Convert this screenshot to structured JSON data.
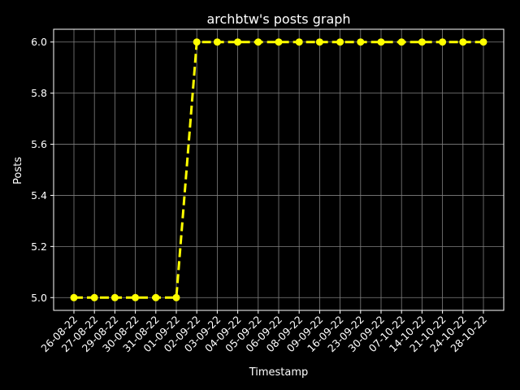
{
  "chart_data": {
    "type": "line",
    "title": "archbtw's posts graph",
    "xlabel": "Timestamp",
    "ylabel": "Posts",
    "categories": [
      "26-08-22",
      "27-08-22",
      "29-08-22",
      "30-08-22",
      "31-08-22",
      "01-09-22",
      "02-09-22",
      "03-09-22",
      "04-09-22",
      "05-09-22",
      "06-09-22",
      "08-09-22",
      "09-09-22",
      "16-09-22",
      "23-09-22",
      "30-09-22",
      "07-10-22",
      "14-10-22",
      "21-10-22",
      "24-10-22",
      "28-10-22"
    ],
    "series": [
      {
        "values": [
          5,
          5,
          5,
          5,
          5,
          5,
          6,
          6,
          6,
          6,
          6,
          6,
          6,
          6,
          6,
          6,
          6,
          6,
          6,
          6,
          6
        ]
      }
    ],
    "yticks": [
      "5.0",
      "5.2",
      "5.4",
      "5.6",
      "5.8",
      "6.0"
    ],
    "ylim": [
      4.95,
      6.05
    ],
    "grid": true,
    "style": {
      "background": "#000000",
      "line_color": "#ffff00",
      "grid_color": "#808080",
      "axis_color": "#ffffff",
      "line_style": "dashed",
      "marker": "circle"
    }
  }
}
